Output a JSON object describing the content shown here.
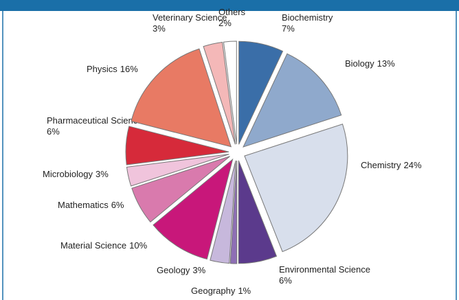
{
  "chart_data": {
    "type": "pie",
    "categories": [
      "Biochemistry",
      "Biology",
      "Chemistry",
      "Environmental Science",
      "Geography",
      "Geology",
      "Material Science",
      "Mathematics",
      "Microbiology",
      "Pharmaceutical Science",
      "Physics",
      "Veterinary Science",
      "Others"
    ],
    "values": [
      7,
      13,
      24,
      6,
      1,
      3,
      10,
      6,
      3,
      6,
      16,
      3,
      2
    ],
    "value_labels": [
      "7%",
      "13%",
      "24%",
      "6%",
      "1%",
      "3%",
      "10%",
      "6%",
      "3%",
      "6%",
      "16%",
      "3%",
      "2%"
    ],
    "colors": [
      "#3a6ea8",
      "#8fa9cc",
      "#d8dfec",
      "#5b3a8c",
      "#8e6fb5",
      "#c7b8dc",
      "#c8177a",
      "#d97aad",
      "#f0c4dc",
      "#d62a3a",
      "#e87a64",
      "#f4b8b8",
      "#ffffff"
    ]
  }
}
